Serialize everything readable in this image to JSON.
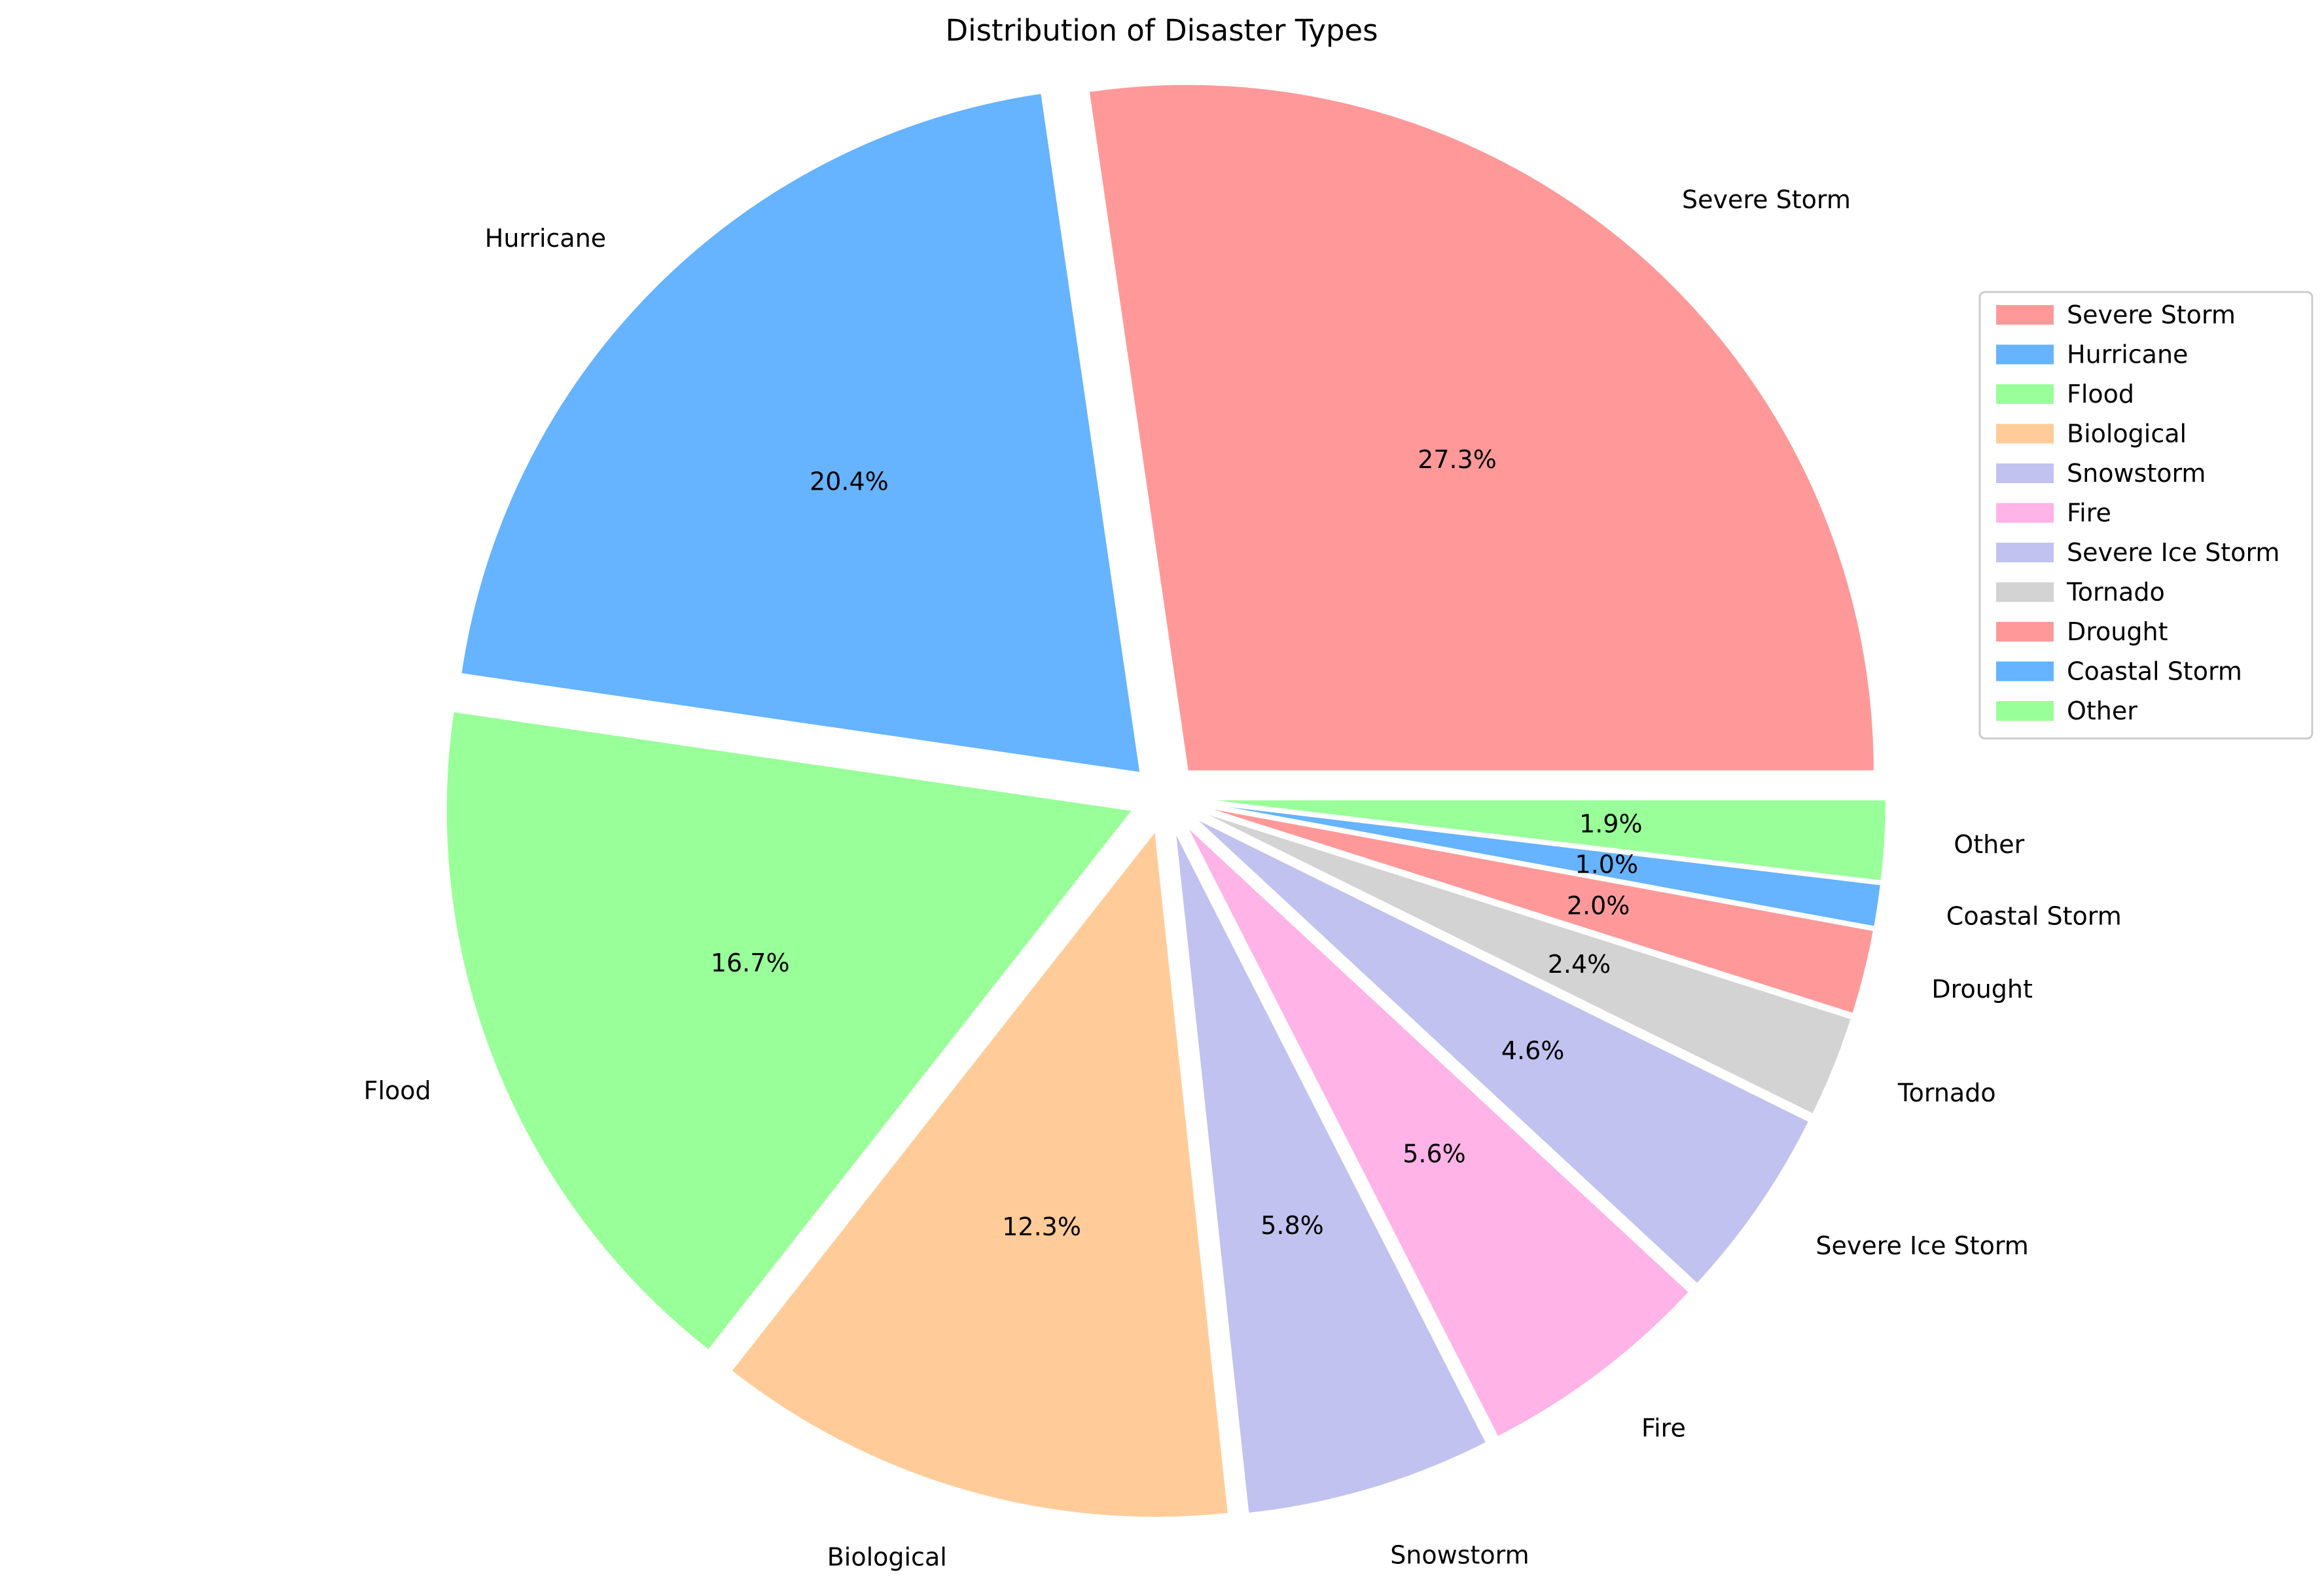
{
  "chart_data": {
    "type": "pie",
    "title": "Distribution of Disaster Types",
    "start_angle_deg": 0,
    "direction": "counterclockwise",
    "slices": [
      {
        "label": "Severe Storm",
        "value": 27.3,
        "pct_label": "27.3%",
        "color": "#FF9999",
        "explode": 0.05
      },
      {
        "label": "Hurricane",
        "value": 20.4,
        "pct_label": "20.4%",
        "color": "#66B3FF",
        "explode": 0.05
      },
      {
        "label": "Flood",
        "value": 16.7,
        "pct_label": "16.7%",
        "color": "#99FF99",
        "explode": 0.05
      },
      {
        "label": "Biological",
        "value": 12.3,
        "pct_label": "12.3%",
        "color": "#FFCC99",
        "explode": 0.05
      },
      {
        "label": "Snowstorm",
        "value": 5.8,
        "pct_label": "5.8%",
        "color": "#C2C2F0",
        "explode": 0.05
      },
      {
        "label": "Fire",
        "value": 5.6,
        "pct_label": "5.6%",
        "color": "#FFB3E6",
        "explode": 0.05
      },
      {
        "label": "Severe Ice Storm",
        "value": 4.6,
        "pct_label": "4.6%",
        "color": "#C2C2F0",
        "explode": 0.05
      },
      {
        "label": "Tornado",
        "value": 2.4,
        "pct_label": "2.4%",
        "color": "#D3D3D3",
        "explode": 0.05
      },
      {
        "label": "Drought",
        "value": 2.0,
        "pct_label": "2.0%",
        "color": "#FF9999",
        "explode": 0.05
      },
      {
        "label": "Coastal Storm",
        "value": 1.0,
        "pct_label": "1.0%",
        "color": "#66B3FF",
        "explode": 0.05
      },
      {
        "label": "Other",
        "value": 1.9,
        "pct_label": "1.9%",
        "color": "#99FF99",
        "explode": 0.05
      }
    ],
    "legend": {
      "placement": "center-right",
      "entries": [
        "Severe Storm",
        "Hurricane",
        "Flood",
        "Biological",
        "Snowstorm",
        "Fire",
        "Severe Ice Storm",
        "Tornado",
        "Drought",
        "Coastal Storm",
        "Other"
      ]
    },
    "slice_edge_color": "#FFFFFF"
  }
}
